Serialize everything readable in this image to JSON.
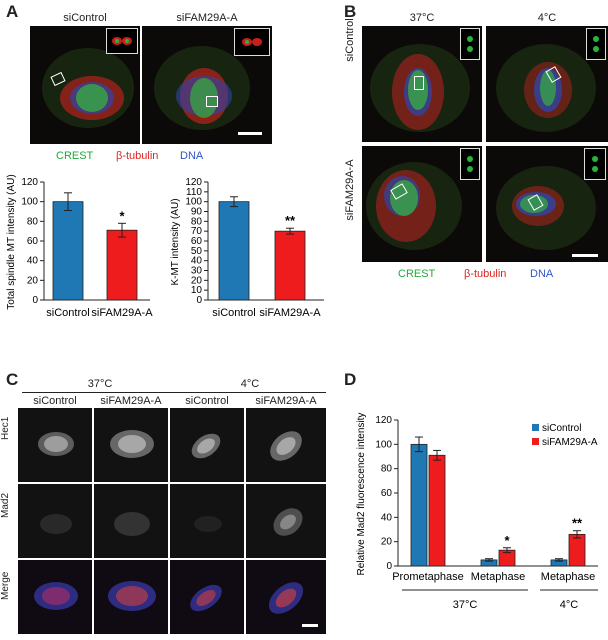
{
  "panels": {
    "a": "A",
    "b": "B",
    "c": "C",
    "d": "D"
  },
  "panel_a": {
    "col_labels": [
      "siControl",
      "siFAM29A-A"
    ],
    "legend": {
      "crest": "CREST",
      "tubulin": "β-tubulin",
      "dna": "DNA"
    },
    "colors": {
      "crest": "#1faa3a",
      "tubulin": "#e0231f",
      "dna": "#2f55c8"
    }
  },
  "panel_b": {
    "col_labels": [
      "37°C",
      "4°C"
    ],
    "row_labels": [
      "siControl",
      "siFAM29A-A"
    ],
    "legend": {
      "crest": "CREST",
      "tubulin": "β-tubulin",
      "dna": "DNA"
    }
  },
  "panel_c": {
    "group_labels": [
      "37°C",
      "4°C"
    ],
    "col_labels": [
      "siControl",
      "siFAM29A-A",
      "siControl",
      "siFAM29A-A"
    ],
    "row_labels": [
      "Hec1",
      "Mad2",
      "Merge"
    ]
  },
  "chart_data": [
    {
      "type": "bar",
      "ylabel": "Total spindle MT intensity (AU)",
      "categories": [
        "siControl",
        "siFAM29A-A"
      ],
      "values": [
        100,
        71
      ],
      "errors": [
        9,
        7
      ],
      "significance": [
        "",
        "*"
      ],
      "ylim": [
        0,
        120
      ],
      "yticks": [
        "0",
        "20",
        "40",
        "60",
        "80",
        "100",
        "120"
      ],
      "colors": [
        "#1f77b4",
        "#ee1c1c"
      ]
    },
    {
      "type": "bar",
      "ylabel": "K-MT intensity (AU)",
      "categories": [
        "siControl",
        "siFAM29A-A"
      ],
      "values": [
        100,
        70
      ],
      "errors": [
        5,
        3
      ],
      "significance": [
        "",
        "**"
      ],
      "ylim": [
        0,
        120
      ],
      "yticks": [
        "0",
        "10",
        "20",
        "30",
        "40",
        "50",
        "60",
        "70",
        "80",
        "90",
        "100",
        "110",
        "120"
      ],
      "colors": [
        "#1f77b4",
        "#ee1c1c"
      ]
    },
    {
      "type": "bar",
      "ylabel": "Relative Mad2 fluorescence intensity",
      "categories": [
        "Prometaphase",
        "Metaphase",
        "Metaphase"
      ],
      "groups": [
        "37°C",
        "4°C"
      ],
      "series": [
        {
          "name": "siControl",
          "values": [
            100,
            5,
            5
          ],
          "errors": [
            6,
            1,
            1
          ],
          "color": "#1f77b4"
        },
        {
          "name": "siFAM29A-A",
          "values": [
            91,
            13,
            26
          ],
          "errors": [
            4,
            2,
            3
          ],
          "color": "#ee1c1c"
        }
      ],
      "significance": [
        "",
        "*",
        "**"
      ],
      "ylim": [
        0,
        120
      ],
      "yticks": [
        "0",
        "20",
        "40",
        "60",
        "80",
        "100",
        "120"
      ]
    }
  ]
}
